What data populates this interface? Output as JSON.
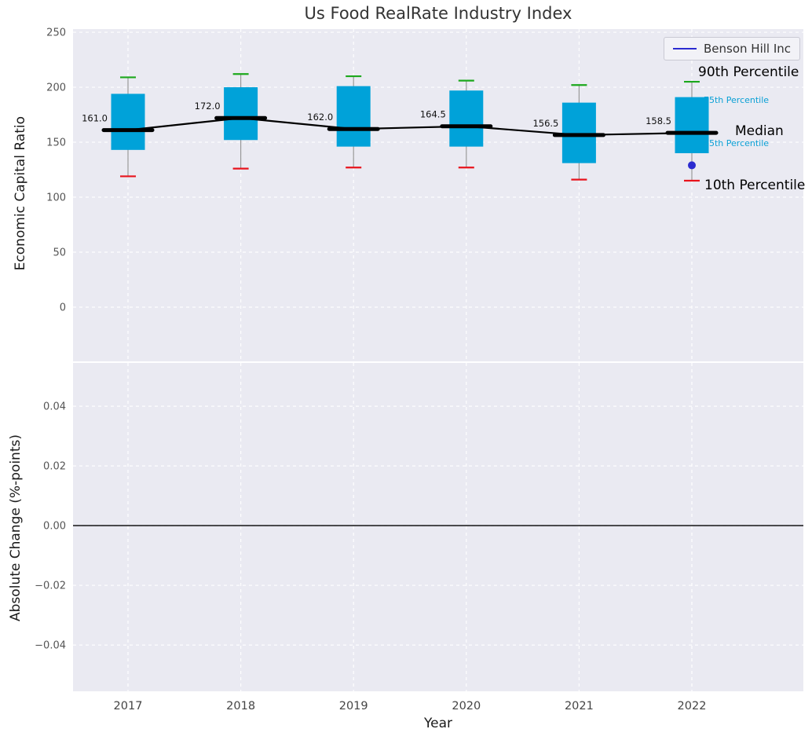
{
  "title": "Us Food RealRate Industry Index",
  "chart_data": [
    {
      "type": "box",
      "title": "Us Food RealRate Industry Index",
      "xlabel": "Year",
      "ylabel": "Economic Capital Ratio",
      "categories": [
        "2017",
        "2018",
        "2019",
        "2020",
        "2021",
        "2022"
      ],
      "ylim": [
        -49.3,
        252.9
      ],
      "yticks": [
        250,
        200,
        150,
        100,
        50,
        0
      ],
      "ytick_labels": [
        "250",
        "200",
        "150",
        "100",
        "50",
        "0"
      ],
      "grid": true,
      "legend_position": "upper right",
      "series": [
        {
          "name": "90th Percentile",
          "values": [
            209,
            212,
            210,
            206,
            202,
            205
          ]
        },
        {
          "name": "75th Percentile",
          "values": [
            194,
            200,
            201,
            197,
            186,
            191
          ]
        },
        {
          "name": "Median",
          "values": [
            161.0,
            172.0,
            162.0,
            164.5,
            156.5,
            158.5
          ]
        },
        {
          "name": "25th Percentile",
          "values": [
            143,
            152,
            146,
            146,
            131,
            140
          ]
        },
        {
          "name": "10th Percentile",
          "values": [
            119,
            126,
            127,
            127,
            116,
            115
          ]
        }
      ],
      "median_labels": [
        "161.0",
        "172.0",
        "162.0",
        "164.5",
        "156.5",
        "158.5"
      ],
      "company_marker": {
        "label": "Benson Hill Inc",
        "category": "2022",
        "value": 129,
        "color": "#2b2bd0"
      },
      "legend": {
        "label": "Benson Hill Inc",
        "line_color": "#2b2bd0"
      },
      "annotations": [
        {
          "text": "90th Percentile",
          "color": "#000000"
        },
        {
          "text": "75th Percentile",
          "color": "#0aa0d5"
        },
        {
          "text": "Median",
          "color": "#000000"
        },
        {
          "text": "25th Percentile",
          "color": "#0aa0d5"
        },
        {
          "text": "10th Percentile",
          "color": "#000000"
        }
      ],
      "colors": {
        "box_fill": "#00a2d9",
        "median_line": "#000000",
        "p90_cap": "#1ca81c",
        "p10_cap": "#e8131c",
        "whisker": "#999999",
        "axes_bg": "#eaeaf2",
        "grid": "#ffffff"
      }
    },
    {
      "type": "line",
      "ylabel": "Absolute Change (%-points)",
      "xlabel": "Year",
      "ylim": [
        -0.0555,
        0.0545
      ],
      "yticks": [
        0.04,
        0.02,
        0.0,
        -0.02,
        -0.04
      ],
      "ytick_labels": [
        "0.04",
        "0.02",
        "0.00",
        "−0.02",
        "−0.04"
      ],
      "zero_line": 0.0,
      "values": []
    }
  ]
}
